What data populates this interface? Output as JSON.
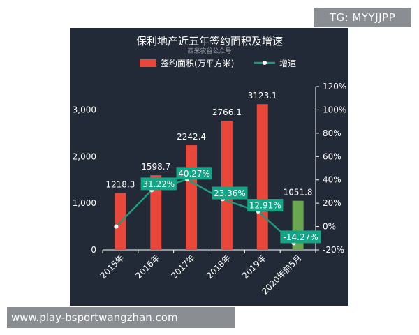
{
  "watermarks": {
    "top_right": "TG: MYYJJPP",
    "bottom_left": "www.play-bsportwangzhan.com"
  },
  "chart_data": {
    "type": "bar",
    "title": "保利地产近五年签约面积及增速",
    "subtitle": "西米农谷公众号",
    "categories": [
      "2015年",
      "2016年",
      "2017年",
      "2018年",
      "2019年",
      "2020年前5月"
    ],
    "series": [
      {
        "name": "签约面积(万平方米)",
        "type": "bar",
        "axis": "left",
        "values": [
          1218.3,
          1598.7,
          2242.4,
          2766.1,
          3123.1,
          1051.8
        ],
        "labels": [
          "1218.3",
          "1598.7",
          "2242.4",
          "2766.1",
          "3123.1",
          "1051.8"
        ],
        "colors": [
          "#e8473a",
          "#e8473a",
          "#e8473a",
          "#e8473a",
          "#e8473a",
          "#6aa84f"
        ]
      },
      {
        "name": "增速",
        "type": "line",
        "axis": "right",
        "values": [
          0,
          31.22,
          40.27,
          23.36,
          12.91,
          -14.27
        ],
        "labels": [
          "",
          "31.22%",
          "40.27%",
          "23.36%",
          "12.91%",
          "-14.27%"
        ],
        "color": "#1e9a7a"
      }
    ],
    "y_left": {
      "min": 0,
      "max": 3500,
      "ticks": [
        0,
        1000,
        2000,
        3000
      ],
      "tick_labels": [
        "0",
        "1,000",
        "2,000",
        "3,000"
      ]
    },
    "y_right": {
      "min": -20,
      "max": 120,
      "ticks": [
        -20,
        0,
        20,
        40,
        60,
        80,
        100,
        120
      ],
      "tick_labels": [
        "-20%",
        "0%",
        "20%",
        "40%",
        "60%",
        "80%",
        "100%",
        "120%"
      ]
    },
    "legend_position": "top",
    "grid": false,
    "colors": {
      "background": "#232a37",
      "bar": "#e8473a",
      "bar_highlight": "#6aa84f",
      "line": "#1e9a7a",
      "text": "#ffffff",
      "subtext": "#9aa0a8"
    }
  }
}
